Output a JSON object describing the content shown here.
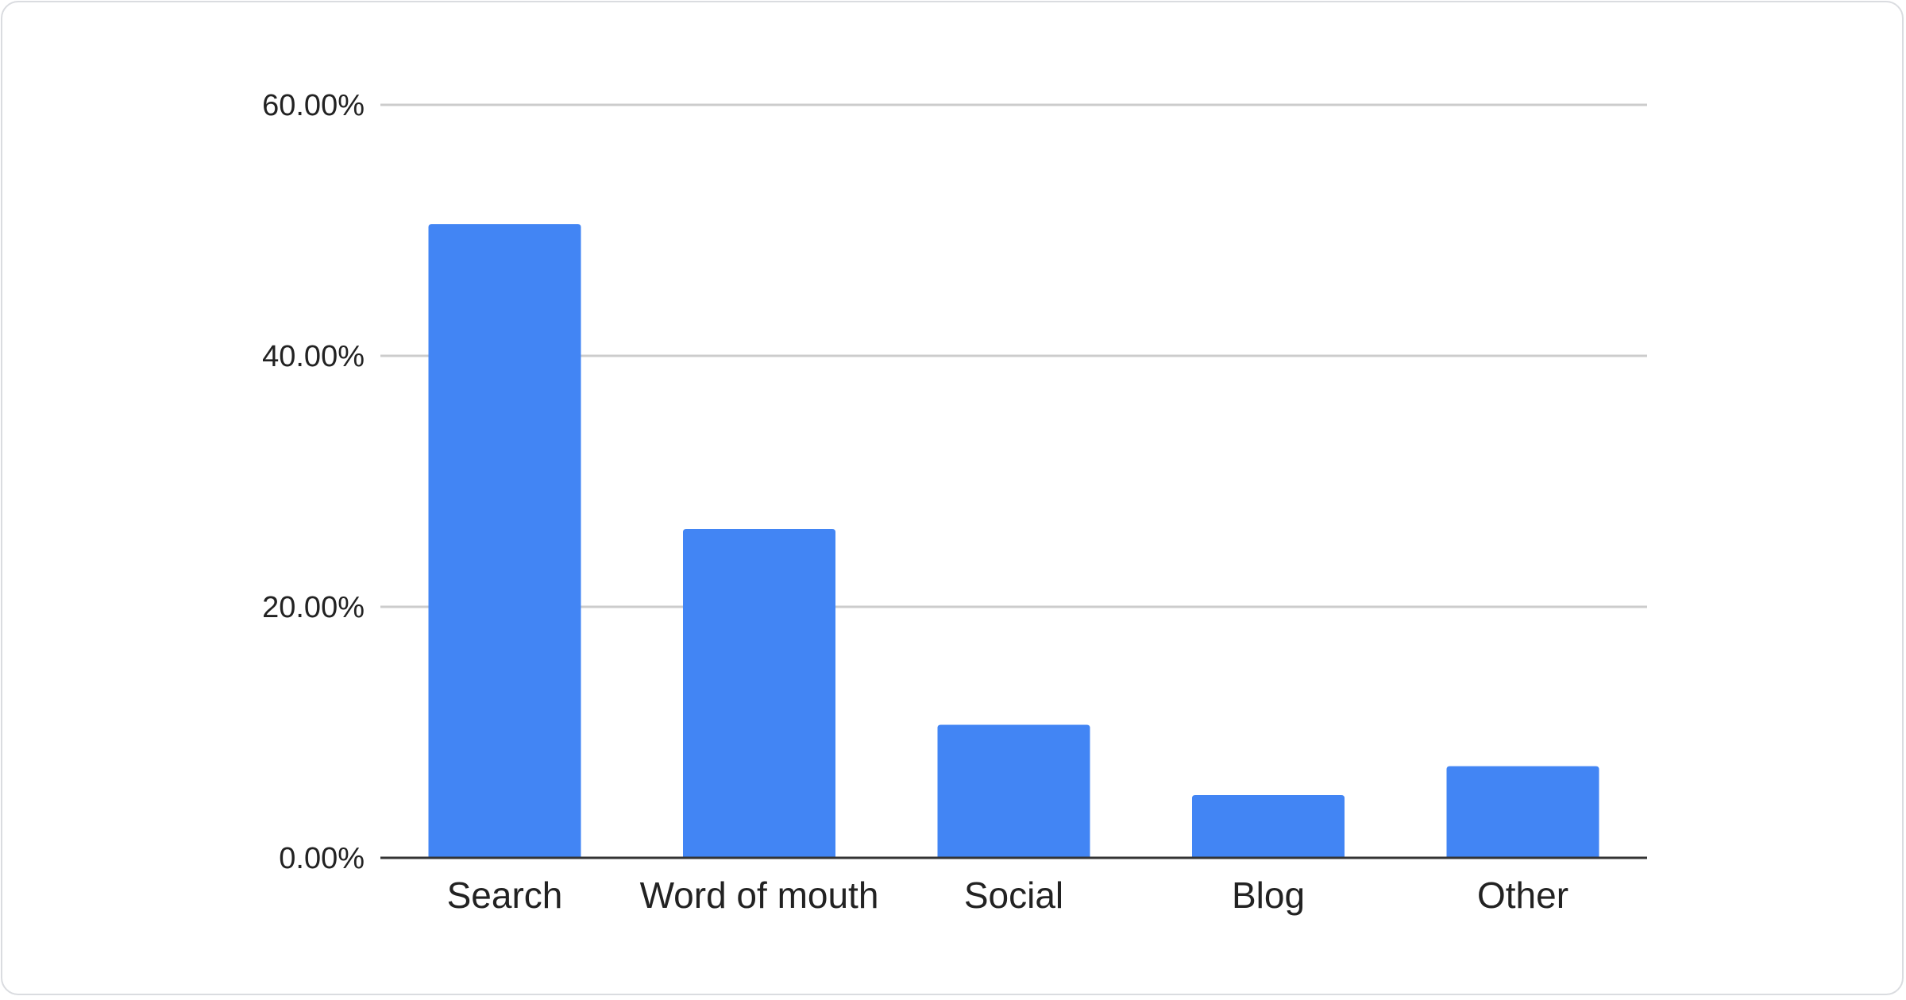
{
  "chart_data": {
    "type": "bar",
    "categories": [
      "Search",
      "Word of mouth",
      "Social",
      "Blog",
      "Other"
    ],
    "values": [
      50.5,
      26.2,
      10.6,
      5.0,
      7.3
    ],
    "title": "",
    "xlabel": "",
    "ylabel": "",
    "ylim": [
      0,
      60
    ],
    "yticks": [
      "0.00%",
      "20.00%",
      "40.00%",
      "60.00%"
    ],
    "ytick_values": [
      0,
      20,
      40,
      60
    ],
    "grid": true,
    "legend": "none",
    "bar_color": "#4285f4"
  }
}
